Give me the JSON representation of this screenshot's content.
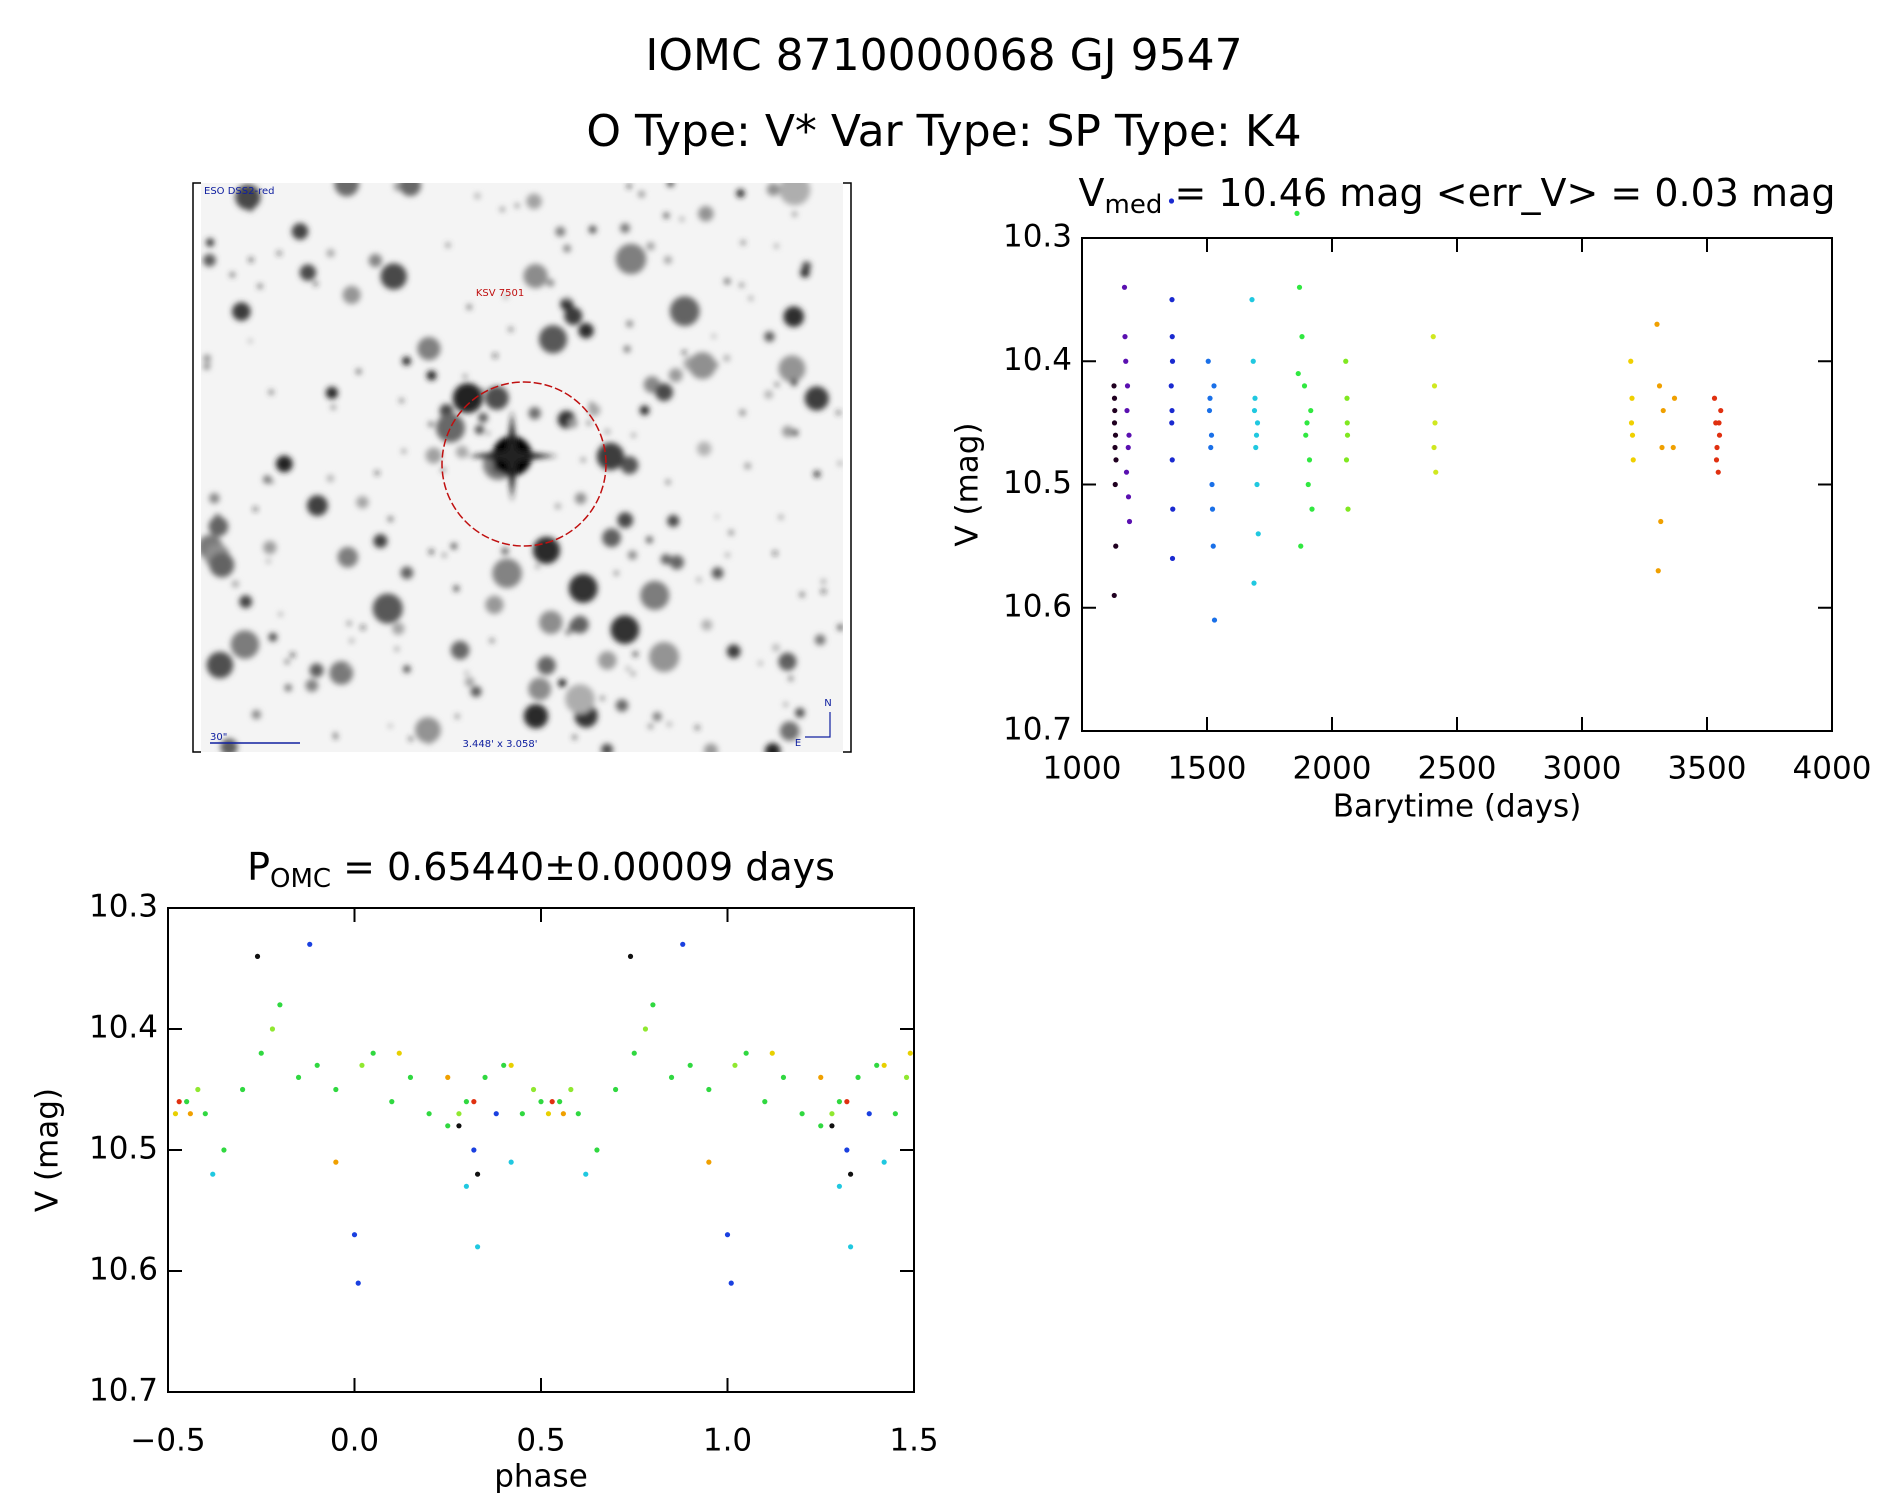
{
  "header": {
    "title": "IOMC 8710000068   GJ  9547",
    "subtitle": "O Type: V*  Var Type:    SP Type: K4"
  },
  "image": {
    "survey": "ESO DSS2-red",
    "object": "KSV 7501",
    "scale": "30\"",
    "size": "3.448' x 3.058'",
    "north": "N",
    "east": "E"
  },
  "chart_data": [
    {
      "type": "scatter",
      "title": "V",
      "title_sub": "med",
      "title_rest": " = 10.46 mag <err_V> = 0.03 mag",
      "x_label": "Barytime (days)",
      "y_label": "V (mag)",
      "xlim": [
        1000,
        4000
      ],
      "xticks": [
        1000,
        1500,
        2000,
        2500,
        3000,
        3500,
        4000
      ],
      "ylim": [
        10.3,
        10.7
      ],
      "yticks": [
        10.3,
        10.4,
        10.5,
        10.6,
        10.7
      ],
      "y_inverted": true,
      "series": [
        {
          "color": "#200020",
          "x": [
            1128,
            1130,
            1132,
            1133,
            1135,
            1129,
            1131,
            1134,
            1136,
            1130
          ],
          "values": [
            10.42,
            10.45,
            10.47,
            10.5,
            10.55,
            10.59,
            10.44,
            10.46,
            10.48,
            10.43
          ]
        },
        {
          "color": "#5a10b0",
          "x": [
            1170,
            1175,
            1180,
            1185,
            1190,
            1178,
            1182,
            1188,
            1172,
            1186
          ],
          "values": [
            10.34,
            10.4,
            10.44,
            10.47,
            10.53,
            10.49,
            10.42,
            10.46,
            10.38,
            10.51
          ]
        },
        {
          "color": "#1a2ad0",
          "x": [
            1358,
            1360,
            1362,
            1359,
            1361,
            1363,
            1357,
            1360,
            1362,
            1361
          ],
          "values": [
            10.27,
            10.35,
            10.4,
            10.45,
            10.48,
            10.52,
            10.42,
            10.44,
            10.56,
            10.38
          ]
        },
        {
          "color": "#1a70e8",
          "x": [
            1505,
            1510,
            1515,
            1520,
            1525,
            1530,
            1512,
            1518,
            1522,
            1528
          ],
          "values": [
            10.4,
            10.44,
            10.47,
            10.5,
            10.55,
            10.61,
            10.43,
            10.46,
            10.52,
            10.42
          ]
        },
        {
          "color": "#20c8e0",
          "x": [
            1680,
            1685,
            1690,
            1695,
            1700,
            1705,
            1688,
            1692,
            1698,
            1702
          ],
          "values": [
            10.35,
            10.4,
            10.44,
            10.47,
            10.5,
            10.54,
            10.58,
            10.43,
            10.46,
            10.45
          ]
        },
        {
          "color": "#30e840",
          "x": [
            1860,
            1870,
            1880,
            1890,
            1900,
            1910,
            1920,
            1875,
            1895,
            1915,
            1865,
            1905
          ],
          "values": [
            10.28,
            10.34,
            10.38,
            10.42,
            10.45,
            10.48,
            10.52,
            10.55,
            10.46,
            10.44,
            10.41,
            10.5
          ]
        },
        {
          "color": "#80e820",
          "x": [
            2055,
            2060,
            2062,
            2058,
            2064,
            2061
          ],
          "values": [
            10.4,
            10.43,
            10.46,
            10.48,
            10.52,
            10.45
          ]
        },
        {
          "color": "#d0e820",
          "x": [
            2405,
            2410,
            2412,
            2408,
            2415
          ],
          "values": [
            10.38,
            10.42,
            10.45,
            10.47,
            10.49
          ]
        },
        {
          "color": "#f0d000",
          "x": [
            3195,
            3200,
            3202,
            3205,
            3198
          ],
          "values": [
            10.4,
            10.43,
            10.46,
            10.48,
            10.45
          ]
        },
        {
          "color": "#f0a000",
          "x": [
            3300,
            3310,
            3320,
            3315,
            3305,
            3325,
            3370,
            3365
          ],
          "values": [
            10.37,
            10.42,
            10.47,
            10.53,
            10.57,
            10.44,
            10.43,
            10.47
          ]
        },
        {
          "color": "#e03010",
          "x": [
            3530,
            3535,
            3540,
            3545,
            3550,
            3555,
            3538,
            3548
          ],
          "values": [
            10.43,
            10.45,
            10.47,
            10.49,
            10.46,
            10.44,
            10.48,
            10.45
          ]
        }
      ]
    },
    {
      "type": "scatter",
      "title": "P",
      "title_sub": "OMC",
      "title_rest": " = 0.65440±0.00009 days",
      "x_label": "phase",
      "y_label": "V (mag)",
      "xlim": [
        -0.5,
        1.5
      ],
      "xticks": [
        {
          "value": -0.5,
          "label": "−0.5"
        },
        {
          "value": 0,
          "label": "0.0"
        },
        0.5,
        {
          "value": 1,
          "label": "1.0"
        },
        1.5
      ],
      "ylim": [
        10.3,
        10.7
      ],
      "yticks": [
        10.3,
        10.4,
        10.5,
        10.6,
        10.7
      ],
      "y_inverted": true,
      "series": [
        {
          "color": "#30d840",
          "x": [
            -0.45,
            -0.4,
            -0.35,
            -0.3,
            -0.25,
            -0.2,
            -0.15,
            -0.1,
            -0.05,
            0.05,
            0.1,
            0.15,
            0.2,
            0.25,
            0.3,
            0.35,
            0.4,
            0.45,
            0.5,
            0.55,
            0.6,
            0.65,
            0.7,
            0.75,
            0.8,
            0.85,
            0.9,
            0.95,
            1.05,
            1.1,
            1.15,
            1.2,
            1.25,
            1.3,
            1.35,
            1.4,
            1.45
          ],
          "values": [
            10.46,
            10.47,
            10.5,
            10.45,
            10.42,
            10.38,
            10.44,
            10.43,
            10.45,
            10.42,
            10.46,
            10.44,
            10.47,
            10.48,
            10.46,
            10.44,
            10.43,
            10.47,
            10.46,
            10.46,
            10.47,
            10.5,
            10.45,
            10.42,
            10.38,
            10.44,
            10.43,
            10.45,
            10.42,
            10.46,
            10.44,
            10.47,
            10.48,
            10.46,
            10.44,
            10.43,
            10.47
          ]
        },
        {
          "color": "#90e830",
          "x": [
            -0.42,
            -0.22,
            0.02,
            0.28,
            0.48,
            0.58,
            0.78,
            1.02,
            1.28,
            1.48
          ],
          "values": [
            10.45,
            10.4,
            10.43,
            10.47,
            10.45,
            10.45,
            10.4,
            10.43,
            10.47,
            10.44
          ]
        },
        {
          "color": "#1a40e0",
          "x": [
            -0.12,
            0.0,
            0.01,
            0.32,
            0.38,
            0.88,
            1.0,
            1.01,
            1.32,
            1.38
          ],
          "values": [
            10.33,
            10.57,
            10.61,
            10.5,
            10.47,
            10.33,
            10.57,
            10.61,
            10.5,
            10.47
          ]
        },
        {
          "color": "#20c8e0",
          "x": [
            -0.38,
            0.3,
            0.33,
            0.42,
            0.62,
            1.3,
            1.33,
            1.42
          ],
          "values": [
            10.52,
            10.53,
            10.58,
            10.51,
            10.52,
            10.53,
            10.58,
            10.51
          ]
        },
        {
          "color": "#e8d000",
          "x": [
            -0.48,
            0.12,
            0.42,
            0.52,
            1.12,
            1.42,
            1.49
          ],
          "values": [
            10.47,
            10.42,
            10.43,
            10.47,
            10.42,
            10.43,
            10.42
          ]
        },
        {
          "color": "#f0a000",
          "x": [
            -0.44,
            -0.05,
            0.25,
            0.56,
            0.95,
            1.25
          ],
          "values": [
            10.47,
            10.51,
            10.44,
            10.47,
            10.51,
            10.44
          ]
        },
        {
          "color": "#e03010",
          "x": [
            -0.47,
            0.32,
            0.53,
            1.32
          ],
          "values": [
            10.46,
            10.46,
            10.46,
            10.46
          ]
        },
        {
          "color": "#101010",
          "x": [
            -0.26,
            0.28,
            0.33,
            0.74,
            1.28,
            1.33
          ],
          "values": [
            10.34,
            10.48,
            10.52,
            10.34,
            10.48,
            10.52
          ]
        }
      ]
    }
  ]
}
